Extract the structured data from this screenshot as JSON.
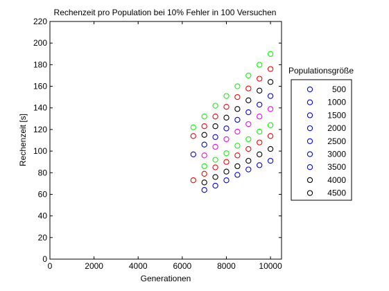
{
  "chart_data": {
    "type": "scatter",
    "title": "Rechenzeit pro Population bei 10% Fehler in 100 Versuchen",
    "xlabel": "Generationen",
    "ylabel": "Rechenzeit [s]",
    "xlim": [
      0,
      10500
    ],
    "ylim": [
      0,
      220
    ],
    "xticks": [
      0,
      2000,
      4000,
      6000,
      8000,
      10000
    ],
    "yticks": [
      0,
      20,
      40,
      60,
      80,
      100,
      120,
      140,
      160,
      180,
      200,
      220
    ],
    "grid": false,
    "marker": "open-circle",
    "legend": {
      "title": "Populationsgröße",
      "placement": "right, outside plot"
    },
    "series": [
      {
        "name": "500",
        "color": "#0000ff",
        "points": [
          [
            7000,
            64
          ],
          [
            7500,
            68
          ],
          [
            8000,
            73
          ],
          [
            8500,
            78
          ],
          [
            9000,
            83
          ],
          [
            9500,
            87
          ],
          [
            10000,
            91
          ]
        ]
      },
      {
        "name": "1000",
        "color": "#0000ff",
        "points": [
          [
            6500,
            97
          ],
          [
            7000,
            106
          ],
          [
            7500,
            113
          ],
          [
            8000,
            121
          ],
          [
            8500,
            129
          ],
          [
            9000,
            136
          ],
          [
            9500,
            143
          ],
          [
            10000,
            151
          ]
        ]
      },
      {
        "name": "1500",
        "color": "#ff00ff",
        "points": [
          [
            7000,
            96
          ],
          [
            7500,
            104
          ],
          [
            8000,
            111
          ],
          [
            8500,
            118
          ],
          [
            9000,
            125
          ],
          [
            9500,
            132
          ],
          [
            10000,
            139
          ]
        ]
      },
      {
        "name": "2000",
        "color": "#00ff00",
        "points": [
          [
            7000,
            86
          ],
          [
            7500,
            92
          ],
          [
            8000,
            98
          ],
          [
            8500,
            105
          ],
          [
            9000,
            111
          ],
          [
            9500,
            118
          ],
          [
            10000,
            124
          ]
        ]
      },
      {
        "name": "2500",
        "color": "#ff0000",
        "points": [
          [
            6500,
            73
          ],
          [
            7000,
            79
          ],
          [
            7500,
            85
          ],
          [
            8000,
            90
          ],
          [
            8500,
            96
          ],
          [
            9000,
            102
          ],
          [
            9500,
            108
          ],
          [
            10000,
            114
          ]
        ]
      },
      {
        "name": "3000",
        "color": "#000000",
        "points": [
          [
            7000,
            71
          ],
          [
            7500,
            76
          ],
          [
            8000,
            81
          ],
          [
            8500,
            86
          ],
          [
            9000,
            91
          ],
          [
            9500,
            97
          ],
          [
            10000,
            102
          ]
        ]
      },
      {
        "name": "3500",
        "color": "#0000ff",
        "points": []
      },
      {
        "name": "4000",
        "color": "#ff0000",
        "points": [
          [
            6500,
            114
          ],
          [
            7000,
            123
          ],
          [
            7500,
            132
          ],
          [
            8000,
            141
          ],
          [
            8500,
            150
          ],
          [
            9000,
            158
          ],
          [
            9500,
            167
          ],
          [
            10000,
            176
          ]
        ]
      },
      {
        "name": "4500",
        "color": "#000000",
        "points": [
          [
            7000,
            115
          ],
          [
            7500,
            123
          ],
          [
            8000,
            131
          ],
          [
            8500,
            139
          ],
          [
            9000,
            147
          ],
          [
            9500,
            156
          ],
          [
            10000,
            164
          ]
        ]
      },
      {
        "name": "",
        "color": "#00ff00",
        "points": [
          [
            6500,
            122
          ],
          [
            7000,
            132
          ],
          [
            7500,
            142
          ],
          [
            8000,
            151
          ],
          [
            8500,
            160
          ],
          [
            9000,
            170
          ],
          [
            9500,
            180
          ],
          [
            10000,
            190
          ]
        ]
      }
    ],
    "legend_entries": [
      {
        "label": "500",
        "color": "#0000ff"
      },
      {
        "label": "1000",
        "color": "#0000ff"
      },
      {
        "label": "1500",
        "color": "#0000ff"
      },
      {
        "label": "2000",
        "color": "#0000ff"
      },
      {
        "label": "2500",
        "color": "#0000ff"
      },
      {
        "label": "3000",
        "color": "#0000ff"
      },
      {
        "label": "3500",
        "color": "#0000ff"
      },
      {
        "label": "4000",
        "color": "#000000"
      },
      {
        "label": "4500",
        "color": "#000000"
      }
    ]
  }
}
